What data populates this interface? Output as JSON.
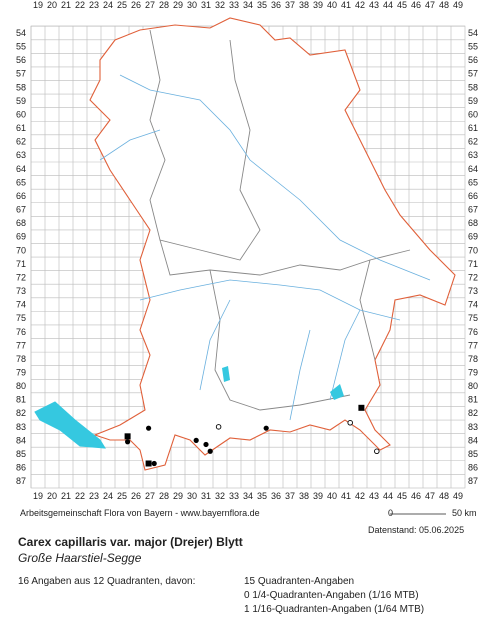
{
  "map": {
    "columns": [
      19,
      20,
      21,
      22,
      23,
      24,
      25,
      26,
      27,
      28,
      29,
      30,
      31,
      32,
      33,
      34,
      35,
      36,
      37,
      38,
      39,
      40,
      41,
      42,
      43,
      44,
      45,
      46,
      47,
      48,
      49
    ],
    "rows": [
      54,
      55,
      56,
      57,
      58,
      59,
      60,
      61,
      62,
      63,
      64,
      65,
      66,
      67,
      68,
      69,
      70,
      71,
      72,
      73,
      74,
      75,
      76,
      77,
      78,
      79,
      80,
      81,
      82,
      83,
      84,
      85,
      86,
      87
    ],
    "points": [
      {
        "col": 42.1,
        "row": 81.6,
        "symbol": "square"
      },
      {
        "col": 26.9,
        "row": 83.1,
        "symbol": "dot"
      },
      {
        "col": 31.9,
        "row": 83.0,
        "symbol": "ring"
      },
      {
        "col": 35.3,
        "row": 83.1,
        "symbol": "dot"
      },
      {
        "col": 41.3,
        "row": 82.7,
        "symbol": "ring"
      },
      {
        "col": 25.4,
        "row": 83.7,
        "symbol": "square"
      },
      {
        "col": 25.4,
        "row": 84.1,
        "symbol": "dot"
      },
      {
        "col": 30.3,
        "row": 84.0,
        "symbol": "dot"
      },
      {
        "col": 31.0,
        "row": 84.3,
        "symbol": "dot"
      },
      {
        "col": 31.3,
        "row": 84.8,
        "symbol": "dot"
      },
      {
        "col": 43.2,
        "row": 84.8,
        "symbol": "ring"
      },
      {
        "col": 26.9,
        "row": 85.7,
        "symbol": "square"
      },
      {
        "col": 27.3,
        "row": 85.7,
        "symbol": "dot"
      }
    ]
  },
  "footer": {
    "credit": "Arbeitsgemeinschaft Flora von Bayern - www.bayernflora.de",
    "date": "Datenstand: 05.06.2025",
    "scale_start": "0",
    "scale_end": "50 km"
  },
  "species": {
    "name": "Carex capillaris var. major (Drejer) Blytt",
    "common_name": "Große Haarstiel-Segge"
  },
  "stats": {
    "summary": "16 Angaben aus 12 Quadranten, davon:",
    "lines": [
      "15 Quadranten-Angaben",
      "0 1/4-Quadranten-Angaben (1/16 MTB)",
      "1 1/16-Quadranten-Angaben (1/64 MTB)"
    ]
  }
}
